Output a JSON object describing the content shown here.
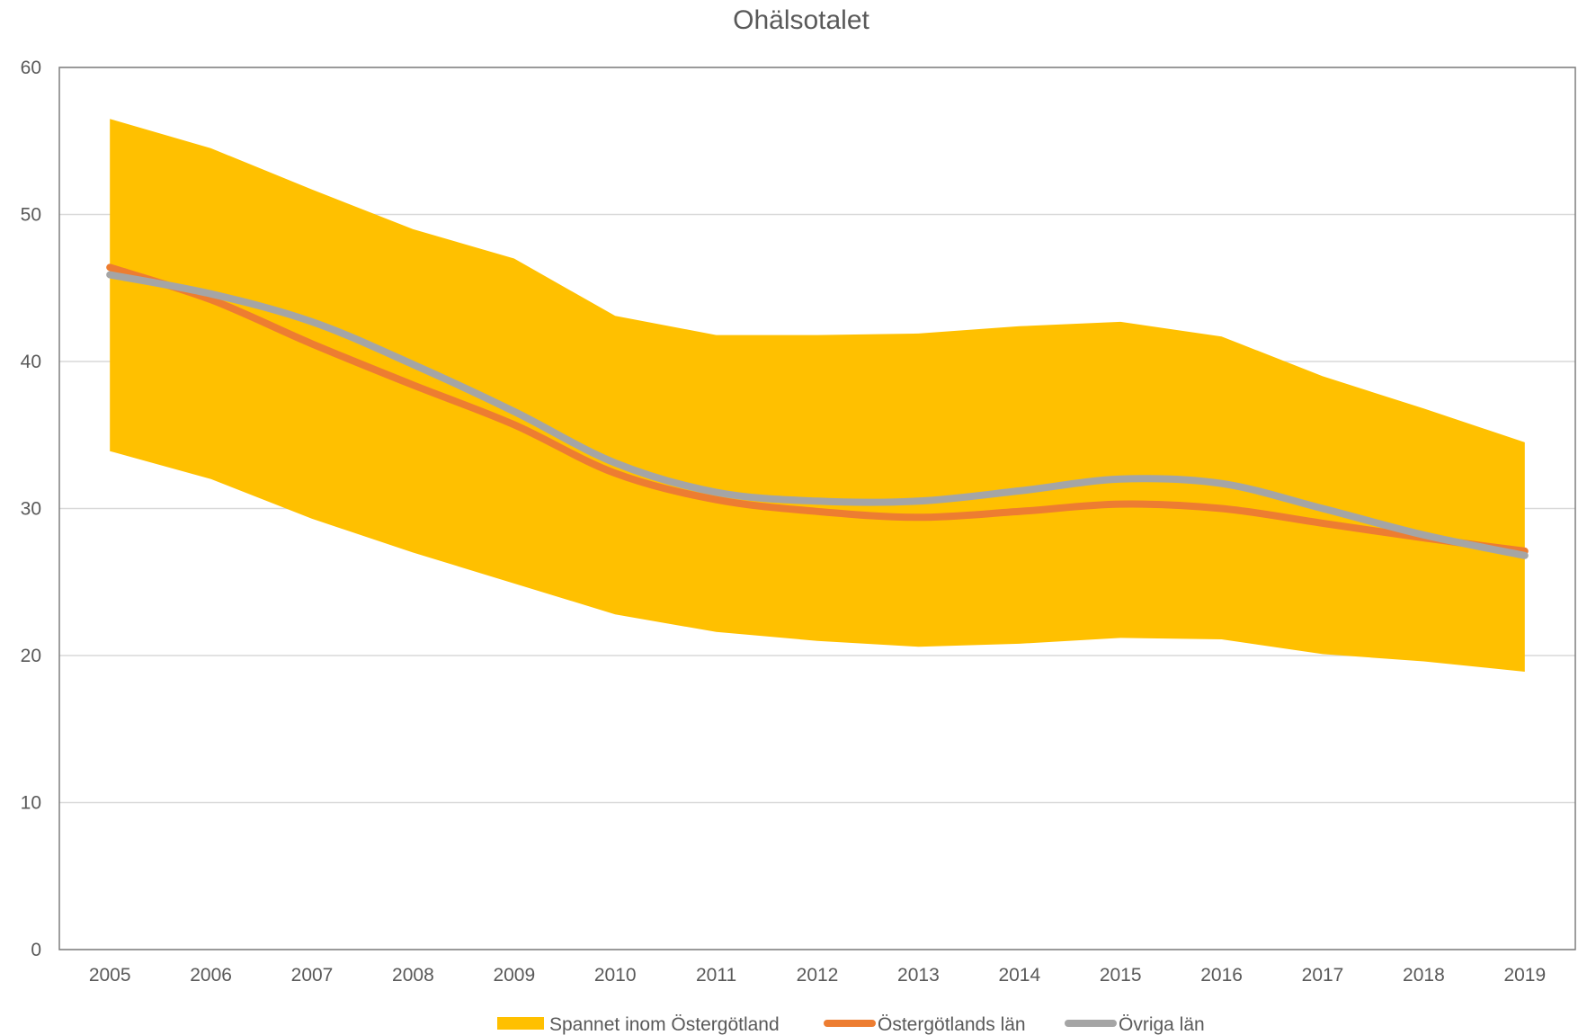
{
  "chart_data": {
    "type": "area",
    "title": "Ohälsotalet",
    "xlabel": "",
    "ylabel": "",
    "categories": [
      "2005",
      "2006",
      "2007",
      "2008",
      "2009",
      "2010",
      "2011",
      "2012",
      "2013",
      "2014",
      "2015",
      "2016",
      "2017",
      "2018",
      "2019"
    ],
    "ylim": [
      0,
      60
    ],
    "yticks": [
      "0",
      "10",
      "20",
      "30",
      "40",
      "50",
      "60"
    ],
    "grid": true,
    "legend_position": "bottom",
    "band": {
      "name": "Spannet inom Östergötland",
      "color": "#FFC000",
      "upper": [
        56.5,
        54.5,
        51.7,
        49.0,
        47.0,
        43.1,
        41.8,
        41.8,
        41.9,
        42.4,
        42.7,
        41.7,
        39.0,
        36.8,
        34.5
      ],
      "lower": [
        33.9,
        32.0,
        29.3,
        27.0,
        24.9,
        22.8,
        21.6,
        21.0,
        20.6,
        20.8,
        21.2,
        21.1,
        20.1,
        19.6,
        18.9
      ]
    },
    "series": [
      {
        "name": "Östergötlands län",
        "color": "#ED7D31",
        "values": [
          46.4,
          44.2,
          41.2,
          38.4,
          35.7,
          32.4,
          30.6,
          29.8,
          29.4,
          29.8,
          30.3,
          30.0,
          29.0,
          28.0,
          27.1
        ]
      },
      {
        "name": "Övriga län",
        "color": "#A5A5A5",
        "values": [
          45.9,
          44.6,
          42.7,
          39.8,
          36.6,
          33.1,
          31.1,
          30.5,
          30.5,
          31.2,
          32.0,
          31.7,
          30.0,
          28.2,
          26.8
        ]
      }
    ]
  }
}
